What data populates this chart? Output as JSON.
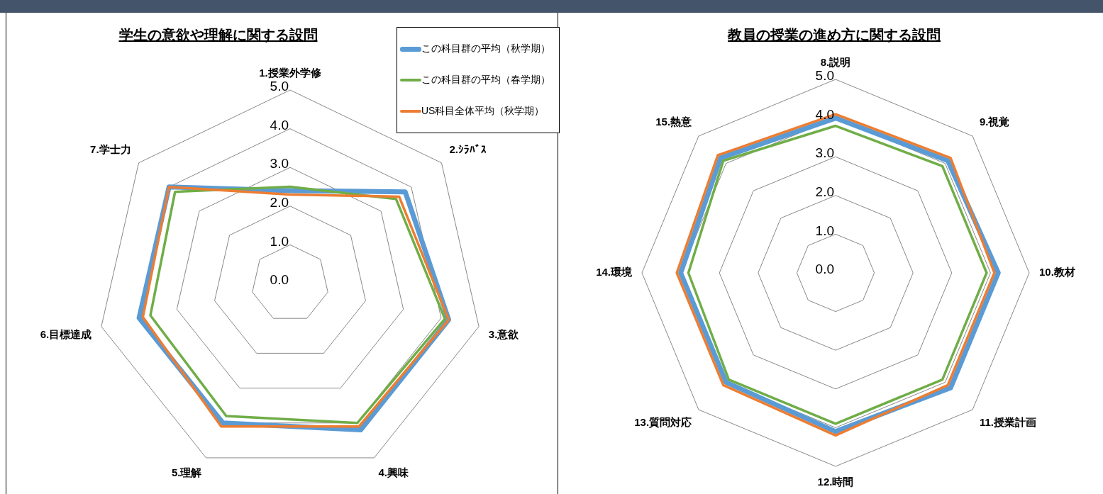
{
  "chart_data": [
    {
      "type": "radar",
      "title": "学生の意欲や理解に関する設問",
      "categories": [
        "1.授業外学修",
        "2.ｼﾗﾊﾞｽ",
        "3.意欲",
        "4.興味",
        "5.理解",
        "6.目標達成",
        "7.学士力"
      ],
      "series": [
        {
          "name": "この科目群の平均（秋学期）",
          "color": "#5b9bd5",
          "values": [
            2.4,
            3.8,
            4.2,
            4.2,
            4.0,
            4.0,
            4.0
          ]
        },
        {
          "name": "この科目群の平均（春学期）",
          "color": "#70ad47",
          "values": [
            2.5,
            3.5,
            4.1,
            4.0,
            3.8,
            3.7,
            3.8
          ]
        },
        {
          "name": "US科目全体平均（秋学期）",
          "color": "#ed7d31",
          "values": [
            2.3,
            3.6,
            4.2,
            4.1,
            4.1,
            3.9,
            4.0
          ]
        }
      ],
      "ylim": [
        0,
        5
      ],
      "yticks": [
        {
          "value": 0,
          "label": "0.0"
        },
        {
          "value": 1,
          "label": "1.0"
        },
        {
          "value": 2,
          "label": "2.0"
        },
        {
          "value": 3,
          "label": "3.0"
        },
        {
          "value": 4,
          "label": "4.0"
        },
        {
          "value": 5,
          "label": "5.0"
        }
      ],
      "grid": true,
      "legend": "top right"
    },
    {
      "type": "radar",
      "title": "教員の授業の進め方に関する設問",
      "categories": [
        "8.説明",
        "9.視覚",
        "10.教材",
        "11.授業計画",
        "12.時間",
        "13.質問対応",
        "14.環境",
        "15.熱意"
      ],
      "series": [
        {
          "color": "#5b9bd5",
          "values": [
            4.0,
            4.1,
            4.2,
            4.2,
            4.1,
            4.0,
            4.0,
            4.2
          ]
        },
        {
          "color": "#70ad47",
          "values": [
            3.8,
            3.9,
            3.9,
            3.9,
            3.9,
            3.9,
            3.8,
            4.1
          ]
        },
        {
          "color": "#ed7d31",
          "values": [
            4.1,
            4.2,
            4.1,
            4.1,
            4.2,
            4.1,
            4.1,
            4.3
          ]
        }
      ],
      "ylim": [
        0,
        5
      ],
      "yticks": [
        {
          "value": 0,
          "label": "0.0"
        },
        {
          "value": 1,
          "label": "1.0"
        },
        {
          "value": 2,
          "label": "2.0"
        },
        {
          "value": 3,
          "label": "3.0"
        },
        {
          "value": 4,
          "label": "4.0"
        },
        {
          "value": 5,
          "label": "5.0"
        }
      ],
      "grid": true
    }
  ]
}
